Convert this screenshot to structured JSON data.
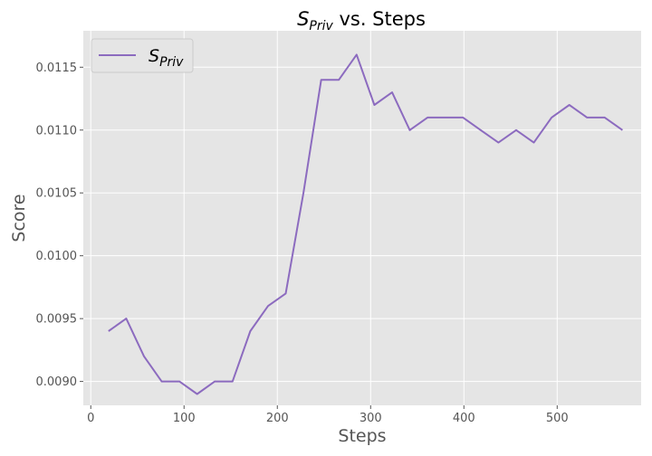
{
  "chart_data": {
    "type": "line",
    "title_symbol": "S",
    "title_subscript": "Priv",
    "title_suffix": " vs. Steps",
    "xlabel": "Steps",
    "ylabel": "Score",
    "xlim": [
      -8,
      590
    ],
    "ylim": [
      0.00881,
      0.01179
    ],
    "x_ticks": [
      0,
      100,
      200,
      300,
      400,
      500
    ],
    "y_ticks": [
      0.009,
      0.0095,
      0.01,
      0.0105,
      0.011,
      0.0115
    ],
    "y_tick_labels": [
      "0.0090",
      "0.0095",
      "0.0100",
      "0.0105",
      "0.0110",
      "0.0115"
    ],
    "grid": true,
    "legend_position": "top-left",
    "colors": {
      "plot_background": "#e5e5e5",
      "grid": "#ffffff",
      "series": "#8c6bbf"
    },
    "series": [
      {
        "name_symbol": "S",
        "name_subscript": "Priv",
        "x": [
          19,
          38,
          57,
          76,
          95,
          114,
          133,
          152,
          171,
          190,
          209,
          228,
          247,
          266,
          285,
          304,
          323,
          342,
          361,
          380,
          399,
          418,
          437,
          456,
          475,
          494,
          513,
          532,
          551,
          570
        ],
        "y": [
          0.0094,
          0.0095,
          0.0092,
          0.009,
          0.009,
          0.0089,
          0.009,
          0.009,
          0.0094,
          0.0096,
          0.0097,
          0.0105,
          0.0114,
          0.0114,
          0.0116,
          0.0112,
          0.0113,
          0.011,
          0.0111,
          0.0111,
          0.0111,
          0.011,
          0.0109,
          0.011,
          0.0109,
          0.0111,
          0.0112,
          0.0111,
          0.0111,
          0.011
        ]
      }
    ]
  }
}
